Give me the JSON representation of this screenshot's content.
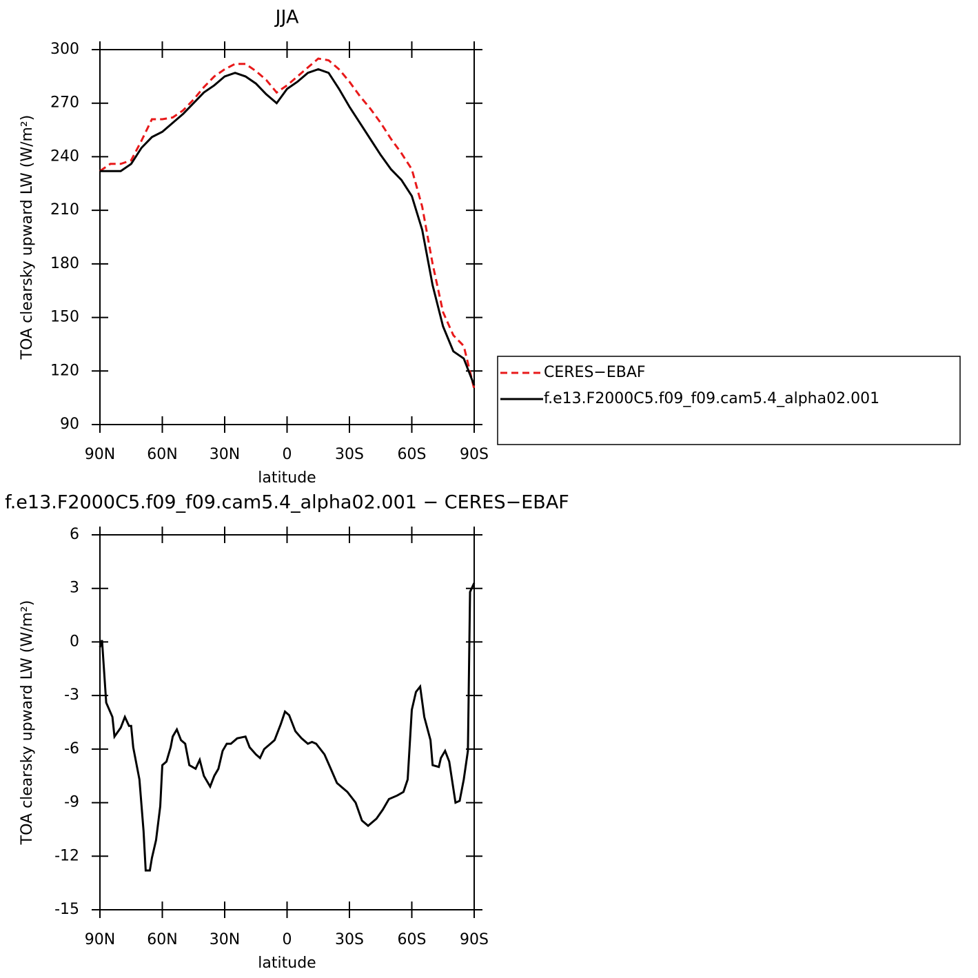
{
  "chart_data": [
    {
      "type": "line",
      "title": "JJA",
      "xlabel": "latitude",
      "ylabel": "TOA clearsky upward LW (W/m²)",
      "x": [
        90,
        85,
        80,
        75,
        70,
        65,
        60,
        55,
        50,
        45,
        40,
        35,
        30,
        25,
        20,
        15,
        10,
        5,
        0,
        -5,
        -10,
        -15,
        -20,
        -25,
        -30,
        -35,
        -40,
        -45,
        -50,
        -55,
        -60,
        -65,
        -70,
        -75,
        -80,
        -85,
        -90
      ],
      "series": [
        {
          "name": "CERES−EBAF",
          "color": "#e8191a",
          "style": "dashed",
          "values": [
            232,
            236,
            236,
            238,
            249,
            261,
            261,
            262,
            266,
            272,
            279,
            285,
            289,
            292,
            292,
            288,
            283,
            276,
            280,
            285,
            290,
            295,
            294,
            289,
            282,
            274,
            267,
            259,
            250,
            242,
            233,
            212,
            180,
            153,
            140,
            134,
            110
          ]
        },
        {
          "name": "f.e13.F2000C5.f09_f09.cam5.4_alpha02.001",
          "color": "#000000",
          "style": "solid",
          "values": [
            232,
            232,
            232,
            236,
            245,
            251,
            254,
            259,
            264,
            270,
            276,
            280,
            285,
            287,
            285,
            281,
            275,
            270,
            278,
            282,
            287,
            289,
            287,
            278,
            268,
            259,
            250,
            241,
            233,
            227,
            218,
            199,
            168,
            145,
            131,
            127,
            112
          ]
        }
      ],
      "xlim": [
        90,
        -90
      ],
      "xticks": [
        {
          "value": 90,
          "label": "90N"
        },
        {
          "value": 60,
          "label": "60N"
        },
        {
          "value": 30,
          "label": "30N"
        },
        0,
        {
          "value": -30,
          "label": "30S"
        },
        {
          "value": -60,
          "label": "60S"
        },
        {
          "value": -90,
          "label": "90S"
        }
      ],
      "ylim": [
        90,
        300
      ],
      "yticks": [
        90,
        120,
        150,
        180,
        210,
        240,
        270,
        300
      ],
      "legend": "right"
    },
    {
      "type": "line",
      "title": "f.e13.F2000C5.f09_f09.cam5.4_alpha02.001 − CERES−EBAF",
      "xlabel": "latitude",
      "ylabel": "TOA clearsky upward LW (W/m²)",
      "x": [
        90,
        89,
        87,
        84,
        83,
        80,
        78,
        76,
        75,
        74,
        71,
        69,
        68,
        66,
        65,
        63,
        61,
        60,
        58,
        56,
        55,
        53,
        51,
        49,
        47,
        44,
        42,
        40,
        37,
        35,
        33,
        31,
        29,
        27,
        24,
        20,
        18,
        15,
        13,
        11,
        8,
        6,
        3,
        1,
        -1,
        -4,
        -7,
        -10,
        -12,
        -14,
        -18,
        -21,
        -24,
        -26,
        -29,
        -33,
        -36,
        -39,
        -43,
        -46,
        -49,
        -53,
        -56,
        -58,
        -60,
        -62,
        -64,
        -66,
        -69,
        -70,
        -73,
        -74,
        -76,
        -78,
        -81,
        -83,
        -85,
        -87,
        -88,
        -90
      ],
      "series": [
        {
          "color": "#000000",
          "style": "solid",
          "values": [
            -0.3,
            0.1,
            -3.4,
            -4.2,
            -5.3,
            -4.8,
            -4.2,
            -4.7,
            -4.7,
            -5.9,
            -7.7,
            -10.6,
            -12.8,
            -12.8,
            -12.1,
            -11.1,
            -9.2,
            -6.9,
            -6.7,
            -5.9,
            -5.3,
            -4.9,
            -5.5,
            -5.7,
            -6.9,
            -7.1,
            -6.6,
            -7.5,
            -8.1,
            -7.5,
            -7.1,
            -6.1,
            -5.7,
            -5.7,
            -5.4,
            -5.3,
            -5.9,
            -6.3,
            -6.5,
            -6,
            -5.7,
            -5.5,
            -4.6,
            -3.9,
            -4.1,
            -5,
            -5.4,
            -5.7,
            -5.6,
            -5.7,
            -6.3,
            -7.1,
            -7.9,
            -8.1,
            -8.4,
            -9,
            -10,
            -10.3,
            -9.9,
            -9.4,
            -8.8,
            -8.6,
            -8.4,
            -7.7,
            -3.8,
            -2.8,
            -2.5,
            -4.2,
            -5.5,
            -6.9,
            -7,
            -6.5,
            -6.1,
            -6.7,
            -9,
            -8.9,
            -7.7,
            -6.1,
            2.8,
            3.3
          ]
        }
      ],
      "xlim": [
        90,
        -90
      ],
      "xticks": [
        {
          "value": 90,
          "label": "90N"
        },
        {
          "value": 60,
          "label": "60N"
        },
        {
          "value": 30,
          "label": "30N"
        },
        0,
        {
          "value": -30,
          "label": "30S"
        },
        {
          "value": -60,
          "label": "60S"
        },
        {
          "value": -90,
          "label": "90S"
        }
      ],
      "ylim": [
        -15,
        6
      ],
      "yticks": [
        -15,
        -12,
        -9,
        -6,
        -3,
        0,
        3,
        6
      ]
    }
  ]
}
